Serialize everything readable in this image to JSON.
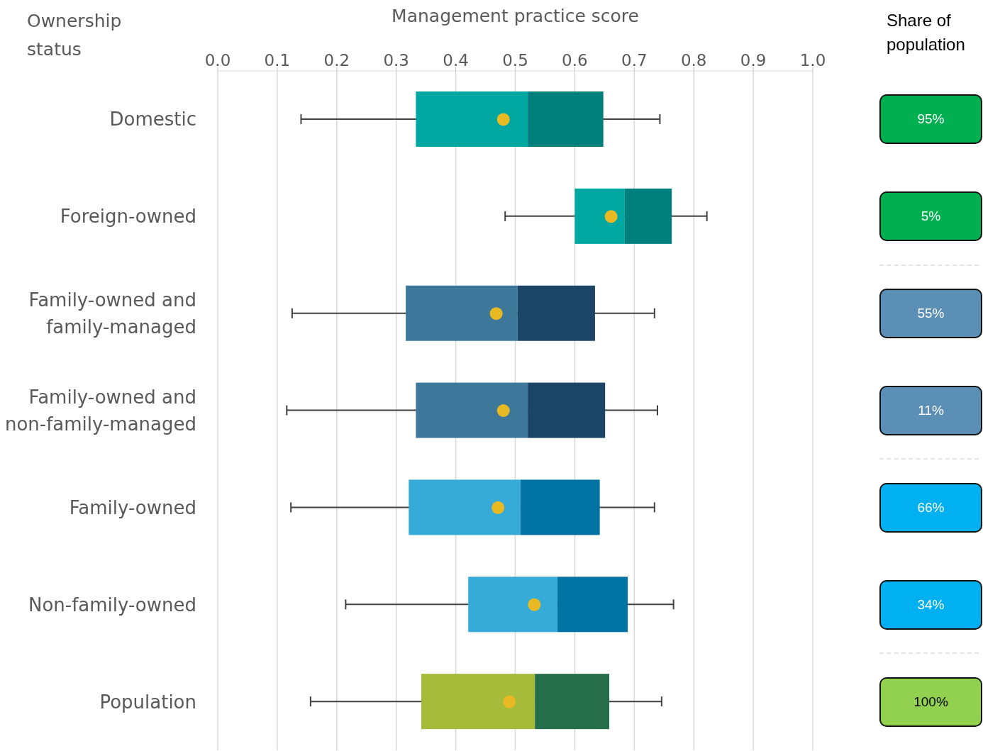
{
  "chart_data": [
    {
      "type": "box",
      "orientation": "horizontal",
      "xlabel": "Management practice score",
      "ylabel": "Ownership status",
      "categories": [
        "Domestic",
        "Foreign-owned",
        "Family-owned and family-managed",
        "Family-owned and non-family-managed",
        "Family-owned",
        "Non-family-owned",
        "Population"
      ],
      "boxes": [
        {
          "low": 0.14,
          "q1": 0.333,
          "median": 0.521,
          "q3": 0.648,
          "high": 0.743
        },
        {
          "low": 0.483,
          "q1": 0.6,
          "median": 0.684,
          "q3": 0.763,
          "high": 0.822
        },
        {
          "low": 0.125,
          "q1": 0.316,
          "median": 0.504,
          "q3": 0.634,
          "high": 0.734
        },
        {
          "low": 0.116,
          "q1": 0.333,
          "median": 0.521,
          "q3": 0.651,
          "high": 0.739
        },
        {
          "low": 0.123,
          "q1": 0.321,
          "median": 0.509,
          "q3": 0.642,
          "high": 0.734
        },
        {
          "low": 0.215,
          "q1": 0.421,
          "median": 0.571,
          "q3": 0.689,
          "high": 0.766
        },
        {
          "low": 0.156,
          "q1": 0.342,
          "median": 0.533,
          "q3": 0.658,
          "high": 0.746
        }
      ],
      "colors": [
        [
          "#00a6a0",
          "#007f7d"
        ],
        [
          "#00a6a0",
          "#007f7d"
        ],
        [
          "#3d789b",
          "#1c4467"
        ],
        [
          "#3d789b",
          "#1c4467"
        ],
        [
          "#37abd8",
          "#0072a3"
        ],
        [
          "#37abd8",
          "#0072a3"
        ],
        [
          "#a7bb3b",
          "#266e4a"
        ]
      ],
      "series": [
        {
          "type": "scatter",
          "color": "#e8b923",
          "x": [
            "Domestic",
            "Foreign-owned",
            "Family-owned and family-managed",
            "Family-owned and non-family-managed",
            "Family-owned",
            "Non-family-owned",
            "Population"
          ],
          "values": [
            0.48,
            0.661,
            0.468,
            0.48,
            0.471,
            0.532,
            0.49
          ]
        }
      ],
      "xlim": [
        0,
        1
      ],
      "xticks": [
        {
          "value": 0,
          "label": "0.0"
        },
        {
          "value": 0.1,
          "label": "0.1"
        },
        {
          "value": 0.2,
          "label": "0.2"
        },
        {
          "value": 0.3,
          "label": "0.3"
        },
        {
          "value": 0.4,
          "label": "0.4"
        },
        {
          "value": 0.5,
          "label": "0.5"
        },
        {
          "value": 0.6,
          "label": "0.6"
        },
        {
          "value": 0.7,
          "label": "0.7"
        },
        {
          "value": 0.8,
          "label": "0.8"
        },
        {
          "value": 0.9,
          "label": "0.9"
        },
        {
          "value": 1,
          "label": "1.0"
        }
      ],
      "grid": "x"
    },
    {
      "type": "other",
      "title": "Share of population",
      "annotations": [
        "95%",
        "5%",
        "55%",
        "11%",
        "66%",
        "34%",
        "100%"
      ],
      "colors": [
        "#00b050",
        "#00b050",
        "#5b8fb5",
        "#5b8fb5",
        "#00b0f0",
        "#00b0f0",
        "#92d050"
      ]
    }
  ]
}
